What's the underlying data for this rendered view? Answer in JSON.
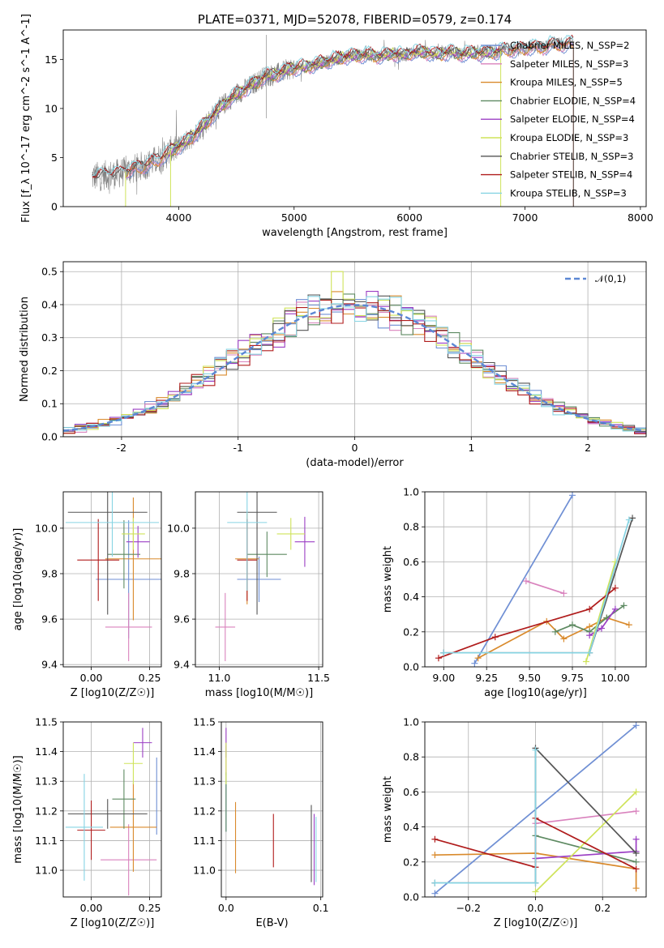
{
  "chart_data": [
    {
      "id": "spectrum",
      "type": "line",
      "title": "PLATE=0371, MJD=52078, FIBERID=0579, z=0.174",
      "xlabel": "wavelength [Angstrom, rest frame]",
      "ylabel": "Flux [f_λ 10^-17 erg cm^-2 s^-1 A^-1]",
      "xlim": [
        3000,
        8050
      ],
      "ylim": [
        0,
        18
      ],
      "xticks": [
        4000,
        5000,
        6000,
        7000,
        8000
      ],
      "yticks": [
        0,
        5,
        10,
        15
      ],
      "grid": false,
      "legend_position": "top-right",
      "observed_color": "#7f7f7f",
      "x": [
        3250,
        3350,
        3450,
        3550,
        3650,
        3750,
        3850,
        3950,
        4050,
        4150,
        4250,
        4350,
        4450,
        4550,
        4650,
        4750,
        4850,
        4950,
        5050,
        5150,
        5250,
        5350,
        5450,
        5550,
        5650,
        5750,
        5850,
        5950,
        6050,
        6150,
        6250,
        6350,
        6450,
        6550,
        6650,
        6750,
        6850,
        6950,
        7050,
        7150,
        7250,
        7350,
        7420
      ],
      "y": [
        3.0,
        3.2,
        3.3,
        3.6,
        4.0,
        4.4,
        5.0,
        5.8,
        6.5,
        7.5,
        8.7,
        10.0,
        11.0,
        11.8,
        12.5,
        13.3,
        13.5,
        14.0,
        14.2,
        14.4,
        14.7,
        15.0,
        15.3,
        15.4,
        15.5,
        15.3,
        15.6,
        15.4,
        15.8,
        15.7,
        15.5,
        15.8,
        15.5,
        15.7,
        15.6,
        15.8,
        16.0,
        16.0,
        16.3,
        16.2,
        16.6,
        16.5,
        16.8
      ],
      "series": [
        {
          "name": "Chabrier MILES, N_SSP=2",
          "color": "#6f8fd4",
          "x_range": [
            3540,
            7420
          ]
        },
        {
          "name": "Salpeter MILES, N_SSP=3",
          "color": "#d982bd",
          "x_range": [
            3540,
            7420
          ]
        },
        {
          "name": "Kroupa MILES, N_SSP=5",
          "color": "#d98a2c",
          "x_range": [
            3540,
            7420
          ]
        },
        {
          "name": "Chabrier ELODIE, N_SSP=4",
          "color": "#5e8a62",
          "x_range": [
            3900,
            6800
          ]
        },
        {
          "name": "Salpeter ELODIE, N_SSP=4",
          "color": "#9b3fc4",
          "x_range": [
            3900,
            6800
          ]
        },
        {
          "name": "Kroupa ELODIE, N_SSP=3",
          "color": "#cfe35a",
          "x_range": [
            3900,
            6800
          ]
        },
        {
          "name": "Chabrier STELIB, N_SSP=3",
          "color": "#555555",
          "x_range": [
            3250,
            7420
          ]
        },
        {
          "name": "Salpeter STELIB, N_SSP=4",
          "color": "#b01c1c",
          "x_range": [
            3250,
            7420
          ]
        },
        {
          "name": "Kroupa STELIB, N_SSP=3",
          "color": "#86d4e3",
          "x_range": [
            3250,
            7420
          ]
        }
      ]
    },
    {
      "id": "residuals",
      "type": "histogram",
      "xlabel": "(data-model)/error",
      "ylabel": "Normed distribution",
      "xlim": [
        -2.5,
        2.5
      ],
      "ylim": [
        0,
        0.53
      ],
      "xticks": [
        -2,
        -1,
        0,
        1,
        2
      ],
      "yticks": [
        0.0,
        0.1,
        0.2,
        0.3,
        0.4,
        0.5
      ],
      "grid": true,
      "reference_curve": {
        "name": "𝒩(0,1)",
        "color": "#5b87d4",
        "style": "dashed"
      },
      "bin_width": 0.1,
      "series_colors": [
        "#6f8fd4",
        "#d982bd",
        "#d98a2c",
        "#5e8a62",
        "#9b3fc4",
        "#cfe35a",
        "#555555",
        "#b01c1c",
        "#86d4e3"
      ]
    },
    {
      "id": "age-vs-z",
      "type": "scatter",
      "xlabel": "Z [log10(Z/Z☉)]",
      "ylabel": "age  [log10(age/yr)]",
      "xlim": [
        -0.12,
        0.3
      ],
      "ylim": [
        9.39,
        10.16
      ],
      "xticks": [
        0.0,
        0.25
      ],
      "yticks": [
        9.4,
        9.6,
        9.8,
        10.0
      ],
      "grid": true,
      "points": [
        {
          "color": "#6f8fd4",
          "x": 0.16,
          "xerr": 0.14,
          "y": 9.775,
          "yerr": 0.26
        },
        {
          "color": "#d982bd",
          "x": 0.16,
          "xerr": 0.1,
          "y": 9.565,
          "yerr": 0.15
        },
        {
          "color": "#d98a2c",
          "x": 0.18,
          "xerr": 0.12,
          "y": 9.865,
          "yerr": 0.27
        },
        {
          "color": "#5e8a62",
          "x": 0.14,
          "xerr": 0.07,
          "y": 9.885,
          "yerr": 0.15
        },
        {
          "color": "#9b3fc4",
          "x": 0.2,
          "xerr": 0.05,
          "y": 9.94,
          "yerr": 0.07
        },
        {
          "color": "#cfe35a",
          "x": 0.18,
          "xerr": 0.05,
          "y": 9.975,
          "yerr": 0.07
        },
        {
          "color": "#555555",
          "x": 0.07,
          "xerr": 0.17,
          "y": 10.07,
          "yerr": 0.45
        },
        {
          "color": "#b01c1c",
          "x": 0.03,
          "xerr": 0.09,
          "y": 9.86,
          "yerr": 0.18
        },
        {
          "color": "#86d4e3",
          "x": 0.09,
          "xerr": 0.2,
          "y": 10.025,
          "yerr": 0.15
        }
      ]
    },
    {
      "id": "age-vs-mass",
      "type": "scatter",
      "xlabel": "mass [log10(M/M☉)]",
      "ylabel": "",
      "xlim": [
        10.88,
        11.52
      ],
      "ylim": [
        9.39,
        10.16
      ],
      "xticks": [
        11.0,
        11.5
      ],
      "yticks": [
        9.4,
        9.6,
        9.8,
        10.0
      ],
      "grid": true,
      "points": [
        {
          "color": "#6f8fd4",
          "x": 11.2,
          "xerr": 0.11,
          "y": 9.775,
          "yerr": 0.1
        },
        {
          "color": "#d982bd",
          "x": 11.03,
          "xerr": 0.05,
          "y": 9.565,
          "yerr": 0.15
        },
        {
          "color": "#d98a2c",
          "x": 11.14,
          "xerr": 0.06,
          "y": 9.865,
          "yerr": 0.2
        },
        {
          "color": "#5e8a62",
          "x": 11.24,
          "xerr": 0.1,
          "y": 9.885,
          "yerr": 0.1
        },
        {
          "color": "#9b3fc4",
          "x": 11.43,
          "xerr": 0.05,
          "y": 9.94,
          "yerr": 0.11
        },
        {
          "color": "#cfe35a",
          "x": 11.36,
          "xerr": 0.07,
          "y": 9.975,
          "yerr": 0.07
        },
        {
          "color": "#555555",
          "x": 11.19,
          "xerr": 0.1,
          "y": 10.07,
          "yerr": 0.45
        },
        {
          "color": "#b01c1c",
          "x": 11.14,
          "xerr": 0.05,
          "y": 9.86,
          "yerr": 0.18
        },
        {
          "color": "#86d4e3",
          "x": 11.14,
          "xerr": 0.1,
          "y": 10.025,
          "yerr": 0.3
        }
      ]
    },
    {
      "id": "weight-vs-age",
      "type": "line",
      "xlabel": "age  [log10(age/yr)]",
      "ylabel": "mass weight",
      "xlim": [
        8.89,
        10.18
      ],
      "ylim": [
        0,
        1.0
      ],
      "xticks": [
        9.0,
        9.25,
        9.5,
        9.75,
        10.0
      ],
      "yticks": [
        0.0,
        0.2,
        0.4,
        0.6,
        0.8,
        1.0
      ],
      "grid": true,
      "series": [
        {
          "color": "#6f8fd4",
          "x": [
            9.18,
            9.75
          ],
          "y": [
            0.02,
            0.98
          ]
        },
        {
          "color": "#d982bd",
          "x": [
            9.48,
            9.7
          ],
          "y": [
            0.49,
            0.42
          ]
        },
        {
          "color": "#d98a2c",
          "x": [
            9.2,
            9.6,
            9.7,
            9.85,
            9.95,
            10.08
          ],
          "y": [
            0.05,
            0.26,
            0.16,
            0.23,
            0.28,
            0.24
          ]
        },
        {
          "color": "#5e8a62",
          "x": [
            9.65,
            9.75,
            9.85,
            9.95,
            10.05
          ],
          "y": [
            0.2,
            0.24,
            0.2,
            0.28,
            0.35
          ]
        },
        {
          "color": "#9b3fc4",
          "x": [
            9.85,
            9.92,
            10.0
          ],
          "y": [
            0.18,
            0.22,
            0.33
          ]
        },
        {
          "color": "#cfe35a",
          "x": [
            9.83,
            10.0
          ],
          "y": [
            0.03,
            0.6
          ]
        },
        {
          "color": "#555555",
          "x": [
            9.0,
            9.85,
            10.1
          ],
          "y": [
            0.08,
            0.08,
            0.85
          ]
        },
        {
          "color": "#b01c1c",
          "x": [
            8.97,
            9.3,
            9.85,
            10.0
          ],
          "y": [
            0.05,
            0.17,
            0.33,
            0.45
          ]
        },
        {
          "color": "#86d4e3",
          "x": [
            9.0,
            9.85,
            10.08
          ],
          "y": [
            0.08,
            0.08,
            0.84
          ]
        }
      ]
    },
    {
      "id": "mass-vs-z",
      "type": "scatter",
      "xlabel": "Z [log10(Z/Z☉)]",
      "ylabel": "mass [log10(M/M☉)]",
      "xlim": [
        -0.12,
        0.3
      ],
      "ylim": [
        10.91,
        11.5
      ],
      "xticks": [
        0.0,
        0.25
      ],
      "yticks": [
        11.0,
        11.1,
        11.2,
        11.3,
        11.4,
        11.5
      ],
      "grid": true,
      "points": [
        {
          "color": "#6f8fd4",
          "x": 0.28,
          "xerr": 0.0,
          "y": 11.25,
          "yerr": 0.13
        },
        {
          "color": "#d982bd",
          "x": 0.16,
          "xerr": 0.12,
          "y": 11.035,
          "yerr": 0.12
        },
        {
          "color": "#d98a2c",
          "x": 0.18,
          "xerr": 0.1,
          "y": 11.145,
          "yerr": 0.15
        },
        {
          "color": "#5e8a62",
          "x": 0.14,
          "xerr": 0.05,
          "y": 11.24,
          "yerr": 0.1
        },
        {
          "color": "#9b3fc4",
          "x": 0.22,
          "xerr": 0.04,
          "y": 11.43,
          "yerr": 0.05
        },
        {
          "color": "#cfe35a",
          "x": 0.18,
          "xerr": 0.04,
          "y": 11.36,
          "yerr": 0.07
        },
        {
          "color": "#555555",
          "x": 0.07,
          "xerr": 0.17,
          "y": 11.19,
          "yerr": 0.05
        },
        {
          "color": "#b01c1c",
          "x": 0.0,
          "xerr": 0.06,
          "y": 11.135,
          "yerr": 0.1
        },
        {
          "color": "#86d4e3",
          "x": -0.03,
          "xerr": 0.08,
          "y": 11.145,
          "yerr": 0.18
        }
      ]
    },
    {
      "id": "mass-vs-ebv",
      "type": "scatter",
      "xlabel": "E(B-V)",
      "ylabel": "",
      "xlim": [
        -0.005,
        0.102
      ],
      "ylim": [
        10.91,
        11.5
      ],
      "xticks": [
        0.0,
        0.1
      ],
      "yticks": [
        11.0,
        11.1,
        11.2,
        11.3,
        11.4,
        11.5
      ],
      "grid": true,
      "points": [
        {
          "color": "#6f8fd4",
          "x": 0.0,
          "y": 11.21,
          "yerr": 0.08
        },
        {
          "color": "#d982bd",
          "x": 0.0,
          "y": 11.37,
          "yerr": 0.05
        },
        {
          "color": "#d98a2c",
          "x": 0.01,
          "y": 11.11,
          "yerr": 0.12
        },
        {
          "color": "#5e8a62",
          "x": 0.0,
          "y": 11.23,
          "yerr": 0.1
        },
        {
          "color": "#9b3fc4",
          "x": 0.0,
          "y": 11.43,
          "yerr": 0.05
        },
        {
          "color": "#cfe35a",
          "x": 0.0,
          "y": 11.36,
          "yerr": 0.07
        },
        {
          "color": "#555555",
          "x": 0.09,
          "y": 11.09,
          "yerr": 0.13
        },
        {
          "color": "#b01c1c",
          "x": 0.05,
          "y": 11.1,
          "yerr": 0.09
        },
        {
          "color": "#9b3fc4",
          "x": 0.093,
          "y": 11.07,
          "yerr": 0.12
        },
        {
          "color": "#86d4e3",
          "x": 0.095,
          "y": 11.07,
          "yerr": 0.11
        }
      ]
    },
    {
      "id": "weight-vs-z",
      "type": "line",
      "xlabel": "Z [log10(Z/Z☉)]",
      "ylabel": "mass weight",
      "xlim": [
        -0.33,
        0.33
      ],
      "ylim": [
        0,
        1.0
      ],
      "xticks": [
        -0.2,
        0.0,
        0.2
      ],
      "yticks": [
        0.0,
        0.2,
        0.4,
        0.6,
        0.8,
        1.0
      ],
      "grid": true,
      "series": [
        {
          "color": "#6f8fd4",
          "x": [
            -0.3,
            0.3
          ],
          "y": [
            0.02,
            0.98
          ]
        },
        {
          "color": "#d982bd",
          "x": [
            0.0,
            0.3
          ],
          "y": [
            0.42,
            0.49
          ]
        },
        {
          "color": "#d98a2c",
          "x": [
            -0.3,
            0.0,
            0.3,
            0.3
          ],
          "y": [
            0.24,
            0.25,
            0.16,
            0.05
          ]
        },
        {
          "color": "#5e8a62",
          "x": [
            0.0,
            0.3
          ],
          "y": [
            0.35,
            0.2
          ]
        },
        {
          "color": "#9b3fc4",
          "x": [
            0.0,
            0.3,
            0.3
          ],
          "y": [
            0.22,
            0.26,
            0.33
          ]
        },
        {
          "color": "#cfe35a",
          "x": [
            0.0,
            0.3
          ],
          "y": [
            0.03,
            0.6
          ]
        },
        {
          "color": "#555555",
          "x": [
            -0.3,
            0.0,
            0.0,
            0.3
          ],
          "y": [
            0.08,
            0.08,
            0.85,
            0.25
          ]
        },
        {
          "color": "#b01c1c",
          "x": [
            -0.3,
            0.0,
            0.0,
            0.3
          ],
          "y": [
            0.33,
            0.17,
            0.45,
            0.16
          ]
        },
        {
          "color": "#86d4e3",
          "x": [
            -0.3,
            0.0,
            0.0
          ],
          "y": [
            0.08,
            0.08,
            0.84
          ]
        }
      ]
    }
  ]
}
